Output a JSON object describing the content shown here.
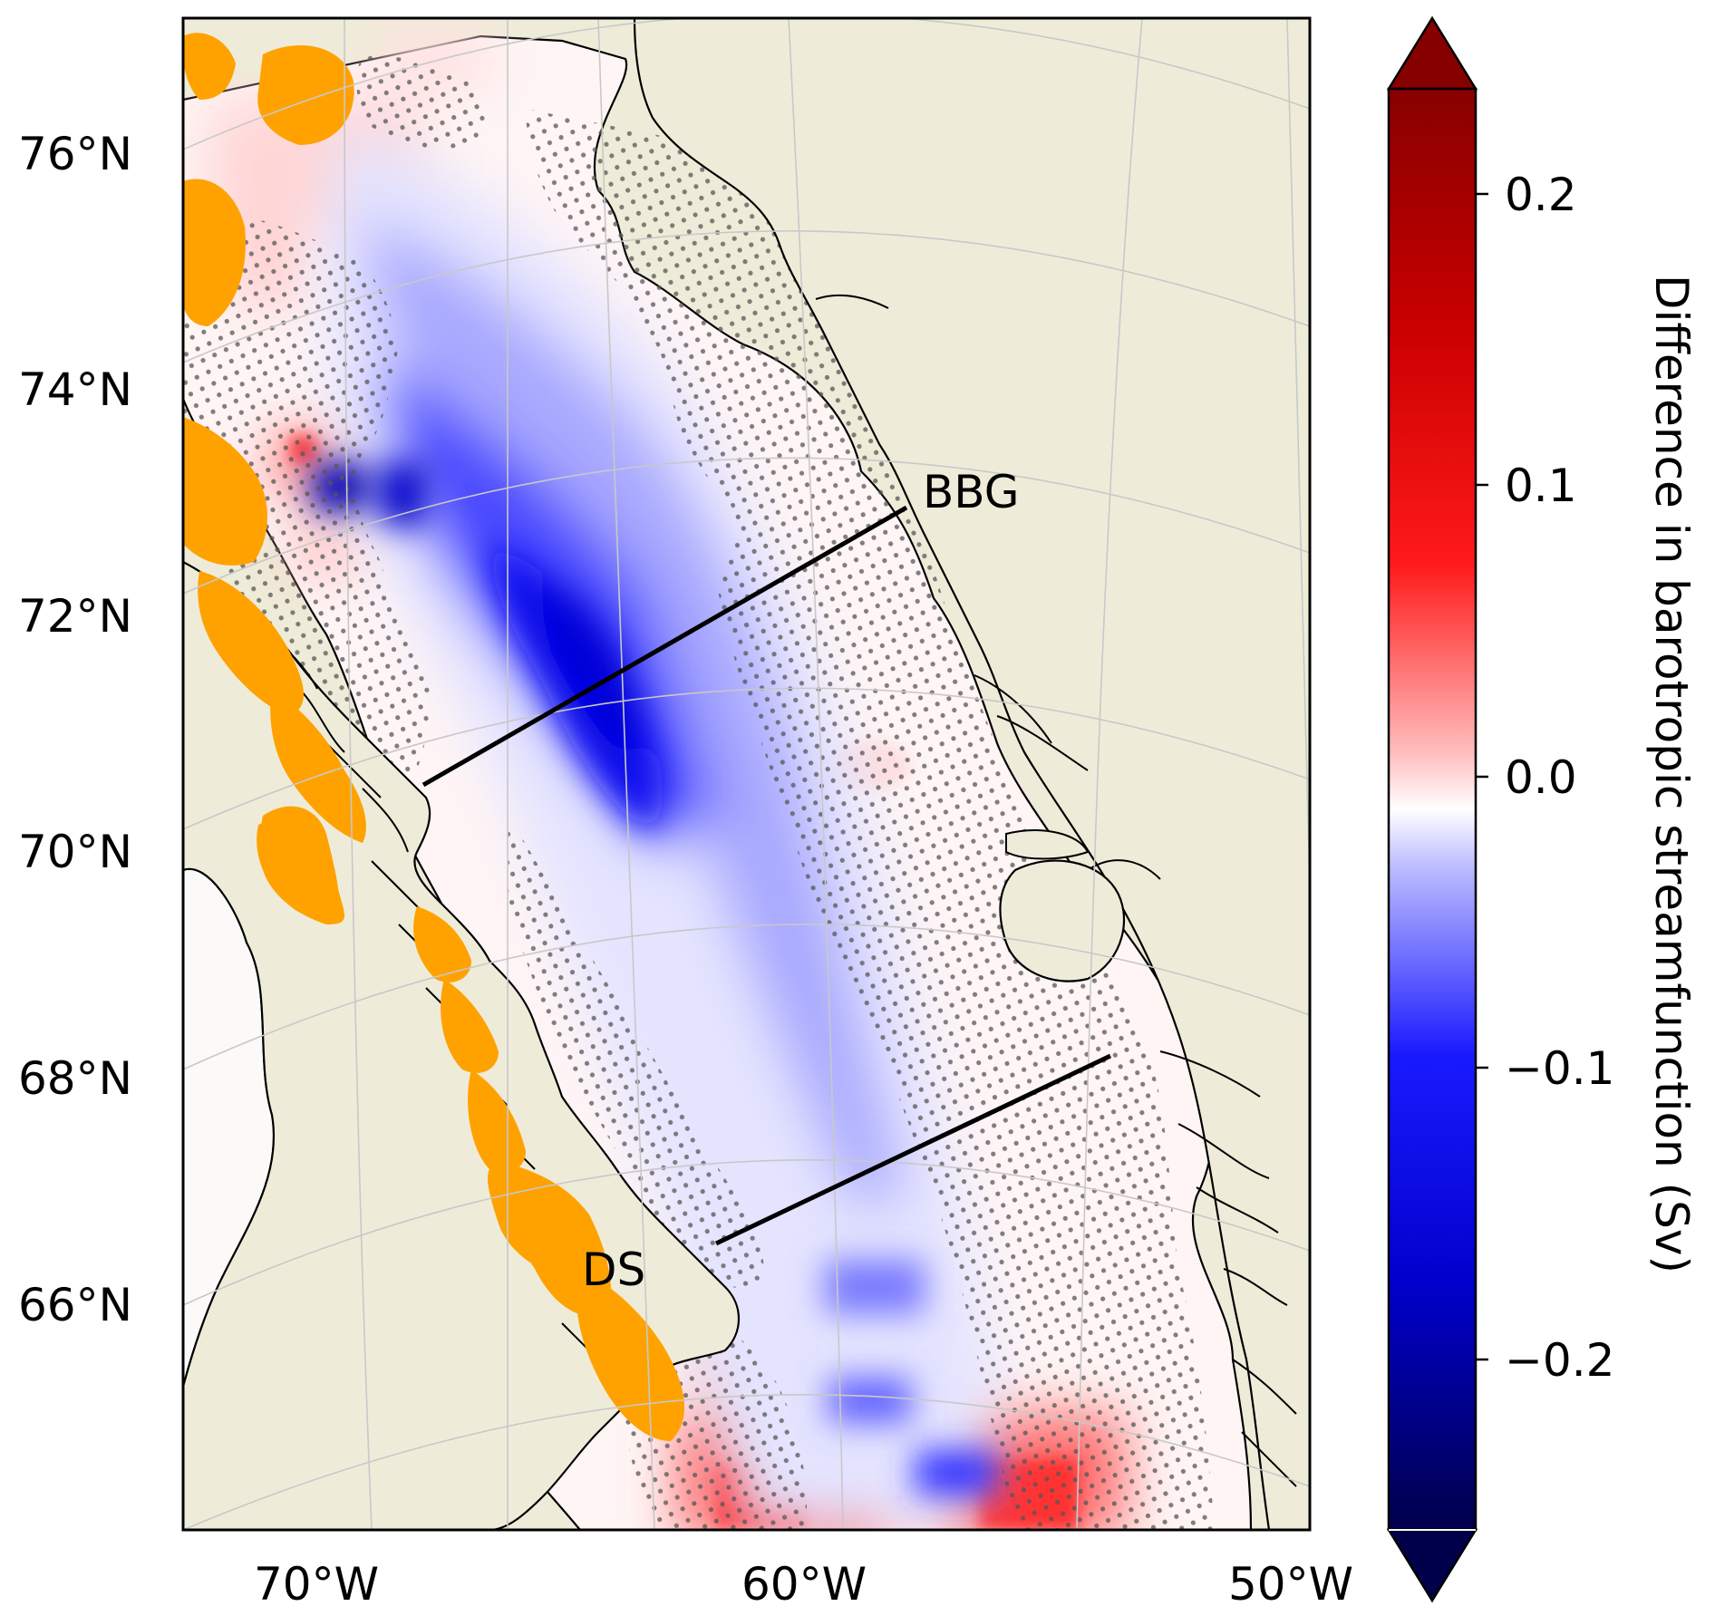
{
  "map": {
    "lat_labels": [
      "76°N",
      "74°N",
      "72°N",
      "70°N",
      "68°N",
      "66°N"
    ],
    "lon_labels": [
      "70°W",
      "60°W",
      "50°W"
    ],
    "sections": [
      {
        "name": "BBG",
        "from": {
          "lon": -68.3,
          "lat": 70.6
        },
        "to": {
          "lon": -58.3,
          "lat": 72.9
        }
      },
      {
        "name": "DS",
        "from": {
          "lon": -62.4,
          "lat": 66.4
        },
        "to": {
          "lon": -53.6,
          "lat": 68.1
        }
      }
    ],
    "colors": {
      "land": "#eeecd9",
      "ice": "#ffa200",
      "coastline": "#000000",
      "graticule": "#c8c8c8",
      "section_line": "#000000",
      "stipple": "#555555"
    }
  },
  "colorbar": {
    "label": "Difference in barotropic streamfunction (Sv)",
    "tick_values": [
      0.2,
      0.1,
      0.0,
      -0.1,
      -0.2
    ],
    "tick_labels": [
      "0.2",
      "0.1",
      "0.0",
      "−0.1",
      "−0.2"
    ],
    "range": [
      -0.24,
      0.24
    ],
    "extend": "both",
    "cmap": "seismic"
  },
  "chart_data": {
    "type": "heatmap",
    "variable": "Difference in barotropic streamfunction",
    "units": "Sv",
    "lat_ticks": [
      76,
      74,
      72,
      70,
      68,
      66
    ],
    "lon_ticks": [
      -70,
      -60,
      -50
    ],
    "colorbar_range": [
      -0.24,
      0.24
    ],
    "features": [
      {
        "region": "central Baffin Bay trough",
        "min_value": -0.2
      },
      {
        "region": "southern Davis Strait patches",
        "max_value": 0.1
      },
      {
        "region": "northwest Baffin Bay patch",
        "max_value": 0.1
      }
    ],
    "sections": [
      "BBG",
      "DS"
    ]
  }
}
